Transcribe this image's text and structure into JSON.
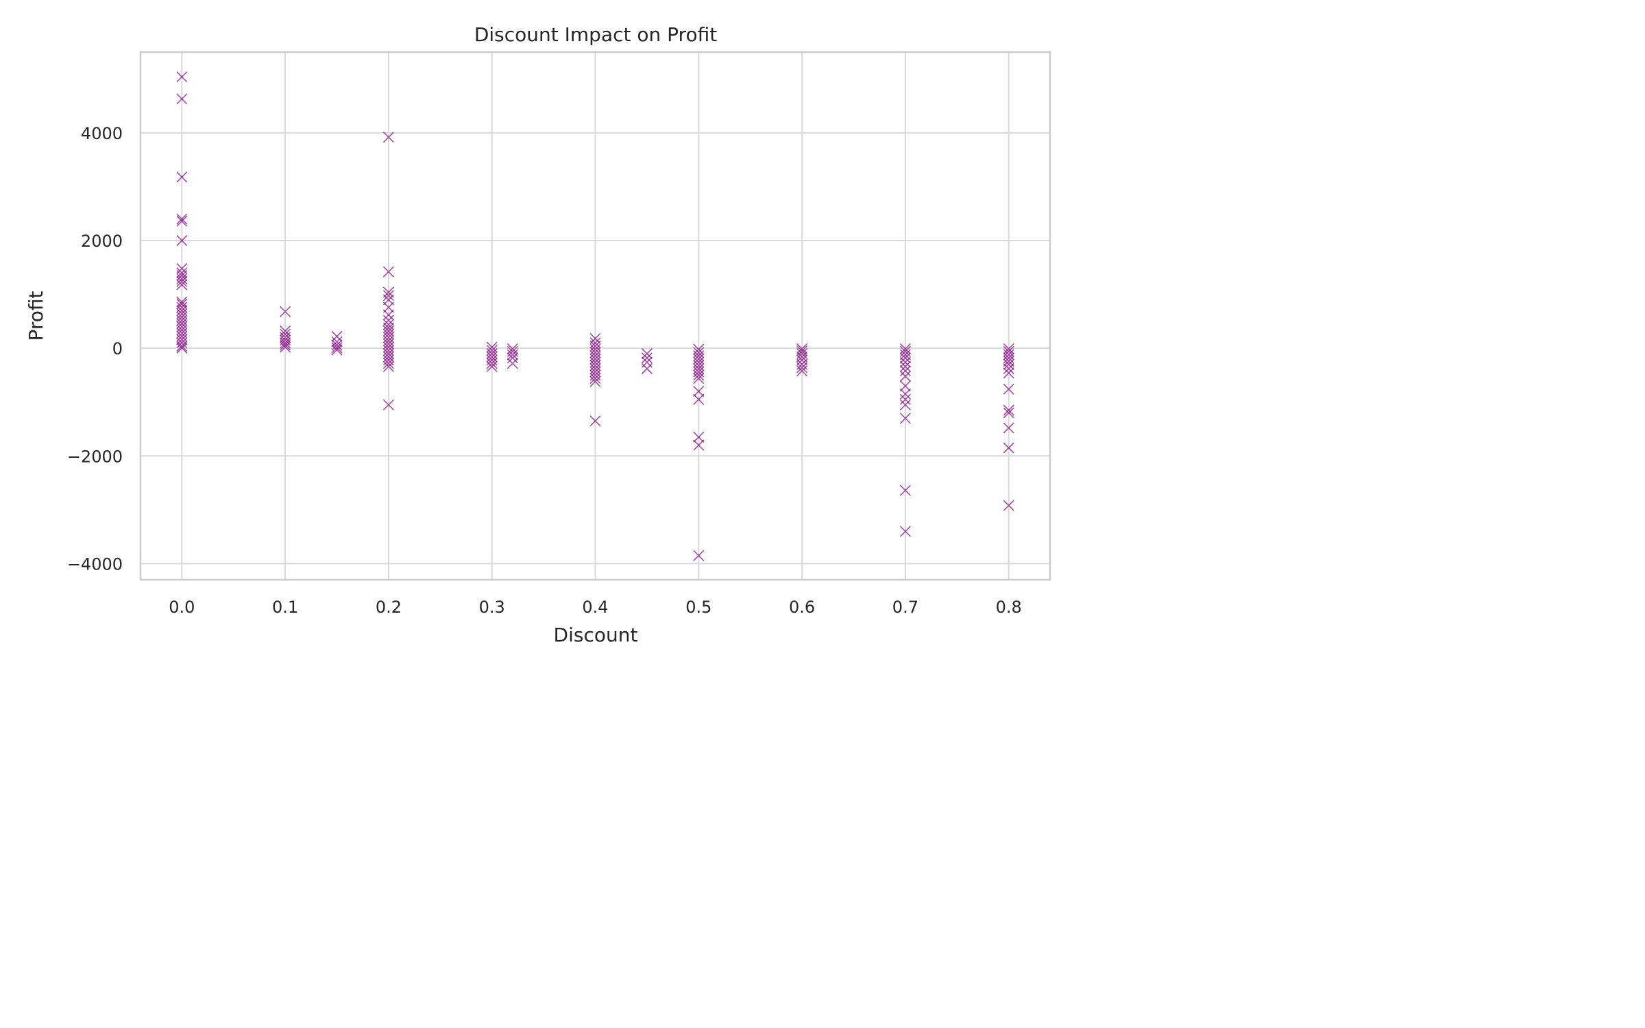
{
  "chart_data": {
    "type": "scatter",
    "title": "Discount Impact on Profit",
    "xlabel": "Discount",
    "ylabel": "Profit",
    "xlim": [
      -0.04,
      0.84
    ],
    "ylim": [
      -4300,
      5500
    ],
    "x_ticks": [
      0.0,
      0.1,
      0.2,
      0.3,
      0.4,
      0.5,
      0.6,
      0.7,
      0.8
    ],
    "x_tick_labels": [
      "0.0",
      "0.1",
      "0.2",
      "0.3",
      "0.4",
      "0.5",
      "0.6",
      "0.7",
      "0.8"
    ],
    "y_ticks": [
      -4000,
      -2000,
      0,
      2000,
      4000
    ],
    "y_tick_labels": [
      "−4000",
      "−2000",
      "0",
      "2000",
      "4000"
    ],
    "grid": true,
    "marker": "x",
    "marker_color": "#800080",
    "series": [
      {
        "points": [
          {
            "x": 0.0,
            "y": 5040
          },
          {
            "x": 0.0,
            "y": 4630
          },
          {
            "x": 0.0,
            "y": 3180
          },
          {
            "x": 0.0,
            "y": 2400
          },
          {
            "x": 0.0,
            "y": 2360
          },
          {
            "x": 0.0,
            "y": 2000
          },
          {
            "x": 0.0,
            "y": 1480
          },
          {
            "x": 0.0,
            "y": 1400
          },
          {
            "x": 0.0,
            "y": 1350
          },
          {
            "x": 0.0,
            "y": 1290
          },
          {
            "x": 0.0,
            "y": 1240
          },
          {
            "x": 0.0,
            "y": 1180
          },
          {
            "x": 0.0,
            "y": 860
          },
          {
            "x": 0.0,
            "y": 820
          },
          {
            "x": 0.0,
            "y": 760
          },
          {
            "x": 0.0,
            "y": 700
          },
          {
            "x": 0.0,
            "y": 640
          },
          {
            "x": 0.0,
            "y": 580
          },
          {
            "x": 0.0,
            "y": 520
          },
          {
            "x": 0.0,
            "y": 460
          },
          {
            "x": 0.0,
            "y": 400
          },
          {
            "x": 0.0,
            "y": 340
          },
          {
            "x": 0.0,
            "y": 280
          },
          {
            "x": 0.0,
            "y": 220
          },
          {
            "x": 0.0,
            "y": 160
          },
          {
            "x": 0.0,
            "y": 100
          },
          {
            "x": 0.0,
            "y": 40
          },
          {
            "x": 0.0,
            "y": 5
          },
          {
            "x": 0.1,
            "y": 680
          },
          {
            "x": 0.1,
            "y": 320
          },
          {
            "x": 0.1,
            "y": 260
          },
          {
            "x": 0.1,
            "y": 200
          },
          {
            "x": 0.1,
            "y": 150
          },
          {
            "x": 0.1,
            "y": 100
          },
          {
            "x": 0.1,
            "y": 60
          },
          {
            "x": 0.1,
            "y": 20
          },
          {
            "x": 0.15,
            "y": 220
          },
          {
            "x": 0.15,
            "y": 120
          },
          {
            "x": 0.15,
            "y": 60
          },
          {
            "x": 0.15,
            "y": 10
          },
          {
            "x": 0.15,
            "y": -30
          },
          {
            "x": 0.2,
            "y": 3920
          },
          {
            "x": 0.2,
            "y": 1420
          },
          {
            "x": 0.2,
            "y": 1040
          },
          {
            "x": 0.2,
            "y": 980
          },
          {
            "x": 0.2,
            "y": 900
          },
          {
            "x": 0.2,
            "y": 760
          },
          {
            "x": 0.2,
            "y": 620
          },
          {
            "x": 0.2,
            "y": 520
          },
          {
            "x": 0.2,
            "y": 440
          },
          {
            "x": 0.2,
            "y": 380
          },
          {
            "x": 0.2,
            "y": 320
          },
          {
            "x": 0.2,
            "y": 260
          },
          {
            "x": 0.2,
            "y": 200
          },
          {
            "x": 0.2,
            "y": 140
          },
          {
            "x": 0.2,
            "y": 80
          },
          {
            "x": 0.2,
            "y": 20
          },
          {
            "x": 0.2,
            "y": -40
          },
          {
            "x": 0.2,
            "y": -100
          },
          {
            "x": 0.2,
            "y": -160
          },
          {
            "x": 0.2,
            "y": -220
          },
          {
            "x": 0.2,
            "y": -280
          },
          {
            "x": 0.2,
            "y": -340
          },
          {
            "x": 0.2,
            "y": -1050
          },
          {
            "x": 0.3,
            "y": 20
          },
          {
            "x": 0.3,
            "y": -40
          },
          {
            "x": 0.3,
            "y": -100
          },
          {
            "x": 0.3,
            "y": -160
          },
          {
            "x": 0.3,
            "y": -220
          },
          {
            "x": 0.3,
            "y": -280
          },
          {
            "x": 0.3,
            "y": -340
          },
          {
            "x": 0.32,
            "y": -10
          },
          {
            "x": 0.32,
            "y": -60
          },
          {
            "x": 0.32,
            "y": -120
          },
          {
            "x": 0.32,
            "y": -180
          },
          {
            "x": 0.32,
            "y": -280
          },
          {
            "x": 0.4,
            "y": 180
          },
          {
            "x": 0.4,
            "y": 100
          },
          {
            "x": 0.4,
            "y": 40
          },
          {
            "x": 0.4,
            "y": -20
          },
          {
            "x": 0.4,
            "y": -80
          },
          {
            "x": 0.4,
            "y": -140
          },
          {
            "x": 0.4,
            "y": -200
          },
          {
            "x": 0.4,
            "y": -260
          },
          {
            "x": 0.4,
            "y": -320
          },
          {
            "x": 0.4,
            "y": -380
          },
          {
            "x": 0.4,
            "y": -440
          },
          {
            "x": 0.4,
            "y": -500
          },
          {
            "x": 0.4,
            "y": -560
          },
          {
            "x": 0.4,
            "y": -620
          },
          {
            "x": 0.4,
            "y": -1350
          },
          {
            "x": 0.45,
            "y": -100
          },
          {
            "x": 0.45,
            "y": -180
          },
          {
            "x": 0.45,
            "y": -260
          },
          {
            "x": 0.45,
            "y": -380
          },
          {
            "x": 0.5,
            "y": -20
          },
          {
            "x": 0.5,
            "y": -80
          },
          {
            "x": 0.5,
            "y": -140
          },
          {
            "x": 0.5,
            "y": -200
          },
          {
            "x": 0.5,
            "y": -260
          },
          {
            "x": 0.5,
            "y": -320
          },
          {
            "x": 0.5,
            "y": -380
          },
          {
            "x": 0.5,
            "y": -440
          },
          {
            "x": 0.5,
            "y": -500
          },
          {
            "x": 0.5,
            "y": -560
          },
          {
            "x": 0.5,
            "y": -800
          },
          {
            "x": 0.5,
            "y": -950
          },
          {
            "x": 0.5,
            "y": -1650
          },
          {
            "x": 0.5,
            "y": -1800
          },
          {
            "x": 0.5,
            "y": -3850
          },
          {
            "x": 0.6,
            "y": -10
          },
          {
            "x": 0.6,
            "y": -50
          },
          {
            "x": 0.6,
            "y": -100
          },
          {
            "x": 0.6,
            "y": -160
          },
          {
            "x": 0.6,
            "y": -220
          },
          {
            "x": 0.6,
            "y": -300
          },
          {
            "x": 0.6,
            "y": -360
          },
          {
            "x": 0.6,
            "y": -420
          },
          {
            "x": 0.7,
            "y": -10
          },
          {
            "x": 0.7,
            "y": -60
          },
          {
            "x": 0.7,
            "y": -120
          },
          {
            "x": 0.7,
            "y": -180
          },
          {
            "x": 0.7,
            "y": -260
          },
          {
            "x": 0.7,
            "y": -340
          },
          {
            "x": 0.7,
            "y": -420
          },
          {
            "x": 0.7,
            "y": -520
          },
          {
            "x": 0.7,
            "y": -700
          },
          {
            "x": 0.7,
            "y": -850
          },
          {
            "x": 0.7,
            "y": -950
          },
          {
            "x": 0.7,
            "y": -1050
          },
          {
            "x": 0.7,
            "y": -1300
          },
          {
            "x": 0.7,
            "y": -2640
          },
          {
            "x": 0.7,
            "y": -3400
          },
          {
            "x": 0.8,
            "y": -10
          },
          {
            "x": 0.8,
            "y": -60
          },
          {
            "x": 0.8,
            "y": -120
          },
          {
            "x": 0.8,
            "y": -180
          },
          {
            "x": 0.8,
            "y": -240
          },
          {
            "x": 0.8,
            "y": -300
          },
          {
            "x": 0.8,
            "y": -380
          },
          {
            "x": 0.8,
            "y": -460
          },
          {
            "x": 0.8,
            "y": -760
          },
          {
            "x": 0.8,
            "y": -1150
          },
          {
            "x": 0.8,
            "y": -1200
          },
          {
            "x": 0.8,
            "y": -1480
          },
          {
            "x": 0.8,
            "y": -1850
          },
          {
            "x": 0.8,
            "y": -2920
          }
        ]
      }
    ]
  }
}
